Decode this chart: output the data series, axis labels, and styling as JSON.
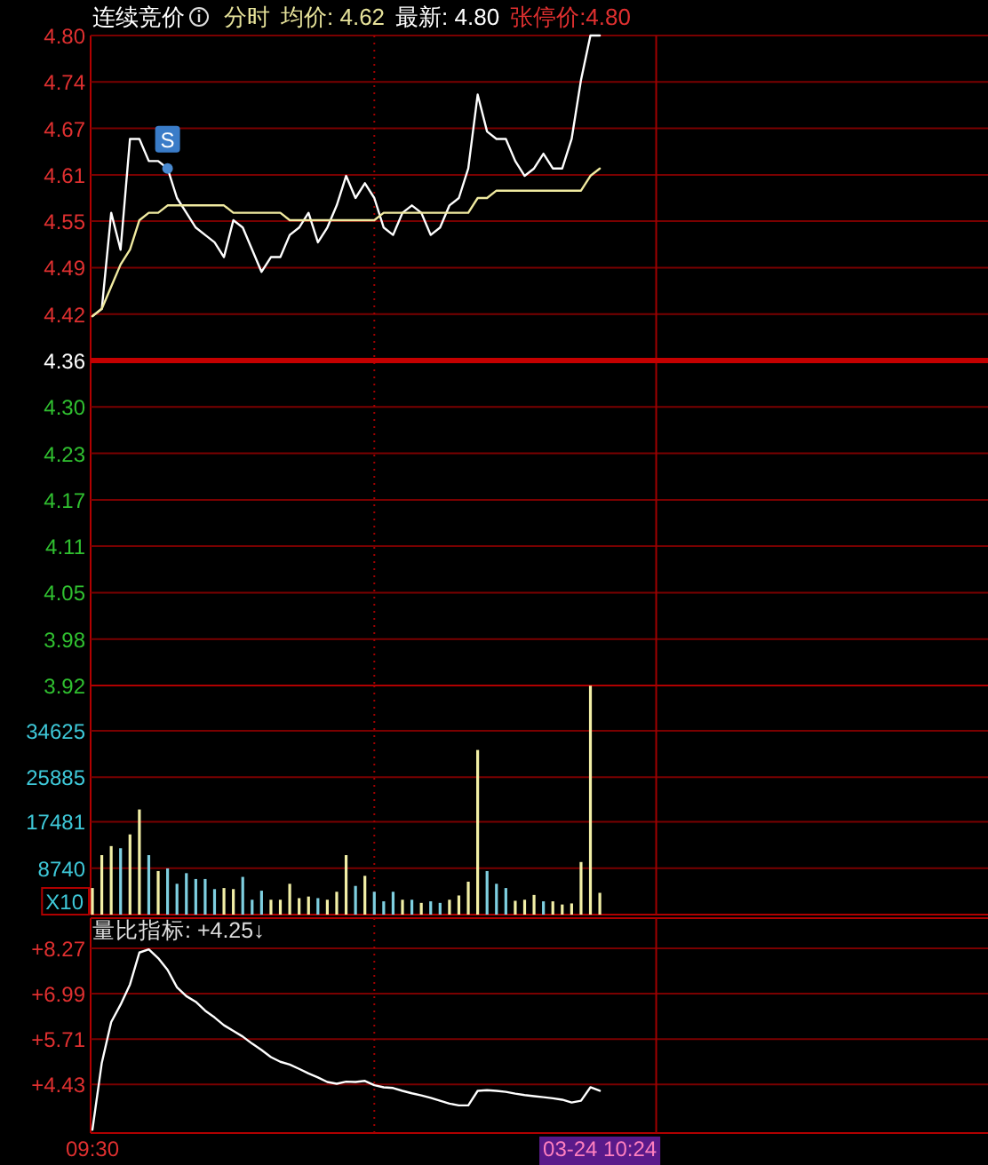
{
  "chart_data": [
    {
      "type": "line",
      "title": "连续竞价",
      "annotations": [
        "分时",
        "均价: 4.62",
        "最新: 4.80",
        "张停价:4.80",
        {
          "text": "S",
          "y": 4.62
        }
      ],
      "categories": [
        null,
        null,
        null,
        null,
        null,
        null,
        null,
        null,
        null,
        null,
        null,
        null,
        null,
        null,
        null,
        null,
        null,
        null,
        null,
        null,
        null,
        null,
        null,
        null,
        null,
        null,
        null,
        null,
        null,
        null,
        null,
        null,
        null,
        null,
        null,
        null,
        null,
        null,
        null,
        null,
        null,
        null,
        null,
        null,
        null,
        null,
        null,
        null,
        null,
        null,
        null,
        null,
        null,
        null,
        null,
        null,
        null,
        null,
        null,
        null,
        null,
        null,
        null,
        null,
        null,
        null,
        null,
        null,
        null,
        null,
        null,
        null,
        null,
        null,
        null,
        null,
        null,
        null,
        null,
        null,
        null,
        null,
        null,
        null,
        null,
        null,
        null,
        null,
        null,
        null,
        null,
        null,
        null,
        null,
        null,
        null
      ],
      "ylim": [
        3.92,
        4.8
      ],
      "yticks": [
        {
          "value": 4.8,
          "label": "4.80"
        },
        {
          "value": 4.7371,
          "label": "4.74"
        },
        {
          "value": 4.6743,
          "label": "4.67"
        },
        {
          "value": 4.6114,
          "label": "4.61"
        },
        {
          "value": 4.5486,
          "label": "4.55"
        },
        {
          "value": 4.4857,
          "label": "4.49"
        },
        {
          "value": 4.4229,
          "label": "4.42"
        },
        {
          "value": 4.36,
          "label": "4.36"
        },
        {
          "value": 4.2971,
          "label": "4.30"
        },
        {
          "value": 4.2343,
          "label": "4.23"
        },
        {
          "value": 4.1714,
          "label": "4.17"
        },
        {
          "value": 4.1086,
          "label": "4.11"
        },
        {
          "value": 4.0457,
          "label": "4.05"
        },
        {
          "value": 3.9829,
          "label": "3.98"
        },
        {
          "value": 3.92,
          "label": "3.92"
        }
      ],
      "tick_labels": "y",
      "grid": "y",
      "ref_lines": [
        {
          "axis": "y",
          "value": 4.36,
          "color": "#c40000"
        }
      ],
      "series": [
        {
          "color": "#ffffff",
          "values": [
            4.42,
            4.43,
            4.56,
            4.51,
            4.66,
            4.66,
            4.63,
            4.63,
            4.62,
            4.58,
            4.56,
            4.54,
            4.53,
            4.52,
            4.5,
            4.55,
            4.54,
            4.51,
            4.48,
            4.5,
            4.5,
            4.53,
            4.54,
            4.56,
            4.52,
            4.54,
            4.57,
            4.61,
            4.58,
            4.6,
            4.58,
            4.54,
            4.53,
            4.56,
            4.57,
            4.56,
            4.53,
            4.54,
            4.57,
            4.58,
            4.62,
            4.72,
            4.67,
            4.66,
            4.66,
            4.63,
            4.61,
            4.62,
            4.64,
            4.62,
            4.62,
            4.66,
            4.74,
            4.8,
            4.8,
            null,
            null,
            null,
            null,
            null,
            null,
            null,
            null,
            null,
            null,
            null,
            null,
            null,
            null,
            null,
            null,
            null,
            null,
            null,
            null,
            null,
            null,
            null,
            null,
            null,
            null,
            null,
            null,
            null,
            null,
            null,
            null,
            null,
            null,
            null,
            null,
            null,
            null,
            null,
            null,
            null
          ]
        },
        {
          "color": "#f0eaa0",
          "values": [
            4.42,
            4.43,
            4.46,
            4.49,
            4.51,
            4.55,
            4.56,
            4.56,
            4.57,
            4.57,
            4.57,
            4.57,
            4.57,
            4.57,
            4.57,
            4.56,
            4.56,
            4.56,
            4.56,
            4.56,
            4.56,
            4.55,
            4.55,
            4.55,
            4.55,
            4.55,
            4.55,
            4.55,
            4.55,
            4.55,
            4.55,
            4.56,
            4.56,
            4.56,
            4.56,
            4.56,
            4.56,
            4.56,
            4.56,
            4.56,
            4.56,
            4.58,
            4.58,
            4.59,
            4.59,
            4.59,
            4.59,
            4.59,
            4.59,
            4.59,
            4.59,
            4.59,
            4.59,
            4.61,
            4.62,
            null,
            null,
            null,
            null,
            null,
            null,
            null,
            null,
            null,
            null,
            null,
            null,
            null,
            null,
            null,
            null,
            null,
            null,
            null,
            null,
            null,
            null,
            null,
            null,
            null,
            null,
            null,
            null,
            null,
            null,
            null,
            null,
            null,
            null,
            null,
            null,
            null,
            null,
            null,
            null,
            null
          ]
        }
      ]
    },
    {
      "type": "bar",
      "ylabel": "X10",
      "categories": [
        null,
        null,
        null,
        null,
        null,
        null,
        null,
        null,
        null,
        null,
        null,
        null,
        null,
        null,
        null,
        null,
        null,
        null,
        null,
        null,
        null,
        null,
        null,
        null,
        null,
        null,
        null,
        null,
        null,
        null,
        null,
        null,
        null,
        null,
        null,
        null,
        null,
        null,
        null,
        null,
        null,
        null,
        null,
        null,
        null,
        null,
        null,
        null,
        null,
        null,
        null,
        null,
        null,
        null,
        null,
        null,
        null,
        null,
        null,
        null,
        null,
        null,
        null,
        null,
        null,
        null,
        null,
        null,
        null,
        null,
        null,
        null,
        null,
        null,
        null,
        null,
        null,
        null,
        null,
        null,
        null,
        null,
        null,
        null,
        null,
        null,
        null,
        null,
        null,
        null,
        null,
        null,
        null,
        null,
        null,
        null
      ],
      "ylim": [
        0,
        43140
      ],
      "yticks": [
        8740,
        17481,
        25885,
        34625
      ],
      "tick_labels": "y",
      "grid": "y",
      "values": [
        5000,
        11200,
        12900,
        12500,
        15100,
        19800,
        11200,
        8200,
        8700,
        5800,
        7800,
        6700,
        6700,
        4800,
        5000,
        4800,
        7100,
        2800,
        4500,
        2800,
        2800,
        5800,
        3100,
        3400,
        3100,
        2800,
        4300,
        11200,
        5400,
        7300,
        4300,
        2500,
        4300,
        2800,
        2800,
        2200,
        2500,
        2200,
        2800,
        3600,
        6200,
        31000,
        8200,
        5800,
        5000,
        2600,
        2800,
        3700,
        2500,
        2500,
        1900,
        2100,
        9900,
        43100,
        4100,
        null,
        null,
        null,
        null,
        null,
        null,
        null,
        null,
        null,
        null,
        null,
        null,
        null,
        null,
        null,
        null,
        null,
        null,
        null,
        null,
        null,
        null,
        null,
        null,
        null,
        null,
        null,
        null,
        null,
        null,
        null,
        null,
        null,
        null,
        null,
        null,
        null,
        null,
        null,
        null,
        null
      ],
      "colors": [
        "#f2efa6",
        "#f2efa6",
        "#f2efa6",
        "#7ecfe0",
        "#f2efa6",
        "#f2efa6",
        "#7ecfe0",
        "#f2efa6",
        "#7ecfe0",
        "#7ecfe0",
        "#7ecfe0",
        "#7ecfe0",
        "#7ecfe0",
        "#7ecfe0",
        "#f2efa6",
        "#f2efa6",
        "#7ecfe0",
        "#7ecfe0",
        "#7ecfe0",
        "#f2efa6",
        "#f2efa6",
        "#f2efa6",
        "#f2efa6",
        "#f2efa6",
        "#7ecfe0",
        "#f2efa6",
        "#f2efa6",
        "#f2efa6",
        "#7ecfe0",
        "#f2efa6",
        "#7ecfe0",
        "#7ecfe0",
        "#7ecfe0",
        "#f2efa6",
        "#7ecfe0",
        "#f2efa6",
        "#7ecfe0",
        "#7ecfe0",
        "#f2efa6",
        "#f2efa6",
        "#f2efa6",
        "#f2efa6",
        "#7ecfe0",
        "#7ecfe0",
        "#7ecfe0",
        "#f2efa6",
        "#f2efa6",
        "#f2efa6",
        "#7ecfe0",
        "#f2efa6",
        "#f2efa6",
        "#f2efa6",
        "#f2efa6",
        "#f2efa6",
        "#f2efa6",
        null,
        null,
        null,
        null,
        null,
        null,
        null,
        null,
        null,
        null,
        null,
        null,
        null,
        null,
        null,
        null,
        null,
        null,
        null,
        null,
        null,
        null,
        null,
        null,
        null,
        null,
        null,
        null,
        null,
        null,
        null,
        null,
        null,
        null,
        null,
        null,
        null,
        null,
        null,
        null,
        null
      ]
    },
    {
      "type": "line",
      "title": "量比指标: +4.25↓",
      "categories": [
        "09:30",
        null,
        null,
        null,
        null,
        null,
        null,
        null,
        null,
        null,
        null,
        null,
        null,
        null,
        null,
        null,
        null,
        null,
        null,
        null,
        null,
        null,
        null,
        null,
        null,
        null,
        null,
        null,
        null,
        null,
        null,
        null,
        null,
        null,
        null,
        null,
        null,
        null,
        null,
        null,
        null,
        null,
        null,
        null,
        null,
        null,
        null,
        null,
        null,
        null,
        null,
        null,
        null,
        null,
        "03-24 10:24",
        null,
        null,
        null,
        null,
        null,
        null,
        null,
        null,
        null,
        null,
        null,
        null,
        null,
        null,
        null,
        null,
        null,
        null,
        null,
        null,
        null,
        null,
        null,
        null,
        null,
        null,
        null,
        null,
        null,
        null,
        null,
        null,
        null,
        null,
        null,
        null,
        null,
        null,
        null,
        null,
        null
      ],
      "ylim": [
        3.06,
        9.12
      ],
      "yticks": [
        {
          "value": 8.27,
          "label": "+8.27"
        },
        {
          "value": 6.99,
          "label": "+6.99"
        },
        {
          "value": 5.71,
          "label": "+5.71"
        },
        {
          "value": 4.43,
          "label": "+4.43"
        }
      ],
      "grid": "y",
      "series": [
        {
          "color": "#ffffff",
          "values": [
            3.15,
            5.04,
            6.19,
            6.68,
            7.25,
            8.15,
            8.24,
            7.99,
            7.66,
            7.17,
            6.92,
            6.76,
            6.51,
            6.32,
            6.1,
            5.94,
            5.78,
            5.58,
            5.4,
            5.2,
            5.07,
            4.99,
            4.87,
            4.74,
            4.63,
            4.5,
            4.45,
            4.51,
            4.5,
            4.53,
            4.41,
            4.35,
            4.33,
            4.25,
            4.18,
            4.12,
            4.05,
            3.97,
            3.89,
            3.84,
            3.84,
            4.25,
            4.27,
            4.25,
            4.22,
            4.17,
            4.13,
            4.1,
            4.07,
            4.04,
            4.0,
            3.92,
            3.97,
            4.35,
            4.25,
            null,
            null,
            null,
            null,
            null,
            null,
            null,
            null,
            null,
            null,
            null,
            null,
            null,
            null,
            null,
            null,
            null,
            null,
            null,
            null,
            null,
            null,
            null,
            null,
            null,
            null,
            null,
            null,
            null,
            null,
            null,
            null,
            null,
            null,
            null,
            null,
            null,
            null,
            null,
            null,
            null
          ]
        }
      ]
    }
  ]
}
